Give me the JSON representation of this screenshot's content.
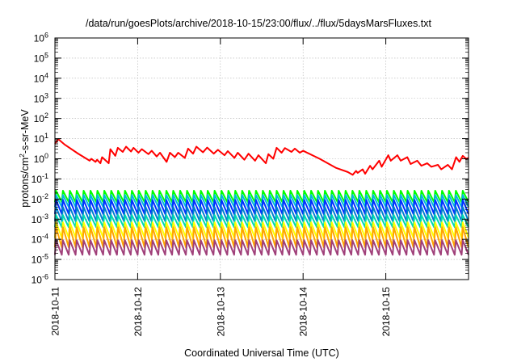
{
  "chart_data": {
    "type": "line",
    "title": "/data/run/goesPlots/archive/2018-10-15/23:00/flux/../flux/5daysMarsFluxes.txt",
    "xlabel": "Coordinated Universal Time (UTC)",
    "ylabel": {
      "prefix": "protons/cm",
      "sup": "2",
      "suffix": "-s-sr-MeV"
    },
    "y_scale": "log",
    "ylim_exp": [
      -6,
      6
    ],
    "xlim": [
      "2018-10-11",
      "2018-10-16"
    ],
    "x_ticks": [
      "2018-10-11",
      "2018-10-12",
      "2018-10-13",
      "2018-10-14",
      "2018-10-15"
    ],
    "y_tick_labels": [
      {
        "base": "10",
        "exp": "-6"
      },
      {
        "base": "10",
        "exp": "-5"
      },
      {
        "base": "10",
        "exp": "-4"
      },
      {
        "base": "10",
        "exp": "-3"
      },
      {
        "base": "10",
        "exp": "-2"
      },
      {
        "base": "10",
        "exp": "-1"
      },
      {
        "base": "10",
        "exp": "0"
      },
      {
        "base": "10",
        "exp": "1"
      },
      {
        "base": "10",
        "exp": "2"
      },
      {
        "base": "10",
        "exp": "3"
      },
      {
        "base": "10",
        "exp": "4"
      },
      {
        "base": "10",
        "exp": "5"
      },
      {
        "base": "10",
        "exp": "6"
      }
    ],
    "grid": true,
    "series": [
      {
        "color": "#ff0000",
        "days": [
          0,
          0.04,
          0.12,
          0.28,
          0.42,
          0.44,
          0.49,
          0.51,
          0.55,
          0.57,
          0.65,
          0.67,
          0.73,
          0.76,
          0.82,
          0.86,
          0.92,
          0.95,
          1.01,
          1.05,
          1.13,
          1.17,
          1.23,
          1.27,
          1.35,
          1.39,
          1.45,
          1.49,
          1.57,
          1.61,
          1.67,
          1.71,
          1.79,
          1.84,
          1.92,
          1.97,
          2.05,
          2.09,
          2.17,
          2.21,
          2.29,
          2.34,
          2.42,
          2.46,
          2.55,
          2.58,
          2.64,
          2.68,
          2.74,
          2.78,
          2.86,
          2.9,
          2.96,
          3.0,
          3.2,
          3.4,
          3.54,
          3.6,
          3.64,
          3.66,
          3.72,
          3.75,
          3.81,
          3.84,
          3.92,
          3.95,
          4.03,
          4.06,
          4.14,
          4.18,
          4.26,
          4.3,
          4.38,
          4.43,
          4.5,
          4.55,
          4.63,
          4.67,
          4.75,
          4.8,
          4.85,
          4.89,
          4.93,
          4.97,
          5.0
        ],
        "values": [
          5.6,
          9.5,
          5.0,
          1.8,
          0.8,
          1.0,
          0.7,
          0.9,
          0.6,
          1.2,
          0.6,
          3.0,
          1.4,
          3.5,
          2.2,
          4.0,
          2.3,
          3.5,
          2.0,
          3.0,
          1.7,
          2.5,
          1.3,
          2.0,
          0.7,
          2.0,
          1.2,
          2.0,
          1.1,
          3.2,
          1.8,
          4.0,
          2.1,
          3.6,
          1.8,
          2.8,
          1.5,
          2.4,
          1.1,
          2.0,
          0.9,
          1.8,
          0.8,
          1.5,
          0.6,
          1.7,
          1.0,
          3.5,
          2.0,
          3.4,
          2.2,
          3.2,
          2.0,
          2.5,
          1.0,
          0.35,
          0.22,
          0.16,
          0.25,
          0.2,
          0.3,
          0.18,
          0.45,
          0.3,
          0.8,
          0.4,
          1.5,
          0.8,
          1.5,
          0.8,
          1.2,
          0.55,
          0.8,
          0.45,
          0.6,
          0.4,
          0.5,
          0.3,
          0.5,
          0.3,
          1.2,
          0.7,
          1.4,
          1.0,
          1.1
        ]
      },
      {
        "color": "#00ff00",
        "sawtooth": {
          "low": 0.007,
          "high": 0.026
        }
      },
      {
        "color": "#00b8e0",
        "sawtooth": {
          "low": 0.004,
          "high": 0.016
        }
      },
      {
        "color": "#0030ff",
        "sawtooth": {
          "low": 0.0018,
          "high": 0.009
        }
      },
      {
        "color": "#007fd0",
        "sawtooth": {
          "low": 0.0008,
          "high": 0.004
        }
      },
      {
        "color": "#00d8b0",
        "sawtooth": {
          "low": 0.0004,
          "high": 0.0016
        }
      },
      {
        "color": "#ffff00",
        "sawtooth": {
          "low": 0.00012,
          "high": 0.0007
        }
      },
      {
        "color": "#ffa500",
        "sawtooth": {
          "low": 4e-05,
          "high": 0.0004
        }
      },
      {
        "color": "#a0407a",
        "sawtooth": {
          "low": 1.7e-05,
          "high": 9e-05
        }
      }
    ]
  }
}
